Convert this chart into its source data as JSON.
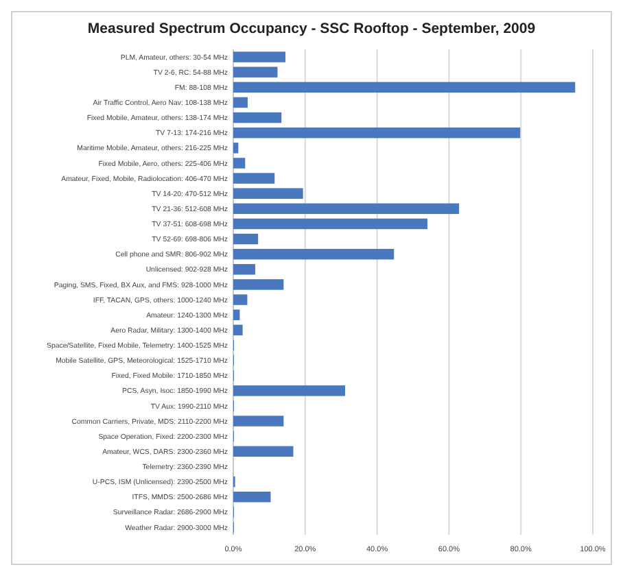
{
  "chart_data": {
    "type": "bar",
    "orientation": "horizontal",
    "title": "Measured Spectrum Occupancy - SSC Rooftop - September, 2009",
    "categories": [
      "PLM, Amateur, others: 30-54 MHz",
      "TV 2-6, RC: 54-88 MHz",
      "FM: 88-108 MHz",
      "Air Traffic Control, Aero Nav: 108-138 MHz",
      "Fixed Mobile, Amateur, others: 138-174 MHz",
      "TV 7-13: 174-216 MHz",
      "Maritime Mobile, Amateur, others: 216-225 MHz",
      "Fixed Mobile, Aero, others: 225-406 MHz",
      "Amateur, Fixed, Mobile, Radiolocation: 406-470 MHz",
      "TV 14-20: 470-512 MHz",
      "TV 21-36: 512-608 MHz",
      "TV 37-51: 608-698 MHz",
      "TV 52-69: 698-806 MHz",
      "Cell phone and SMR: 806-902 MHz",
      "Unlicensed: 902-928 MHz",
      "Paging, SMS, Fixed, BX Aux, and FMS: 928-1000 MHz",
      "IFF, TACAN, GPS, others: 1000-1240 MHz",
      "Amateur: 1240-1300 MHz",
      "Aero Radar, Military: 1300-1400 MHz",
      "Space/Satellite, Fixed Mobile, Telemetry: 1400-1525 MHz",
      "Mobile Satellite, GPS, Meteorological: 1525-1710 MHz",
      "Fixed, Fixed Mobile: 1710-1850 MHz",
      "PCS, Asyn, Isoc: 1850-1990 MHz",
      "TV Aux: 1990-2110 MHz",
      "Common Carriers, Private, MDS: 2110-2200 MHz",
      "Space Operation, Fixed: 2200-2300 MHz",
      "Amateur, WCS, DARS: 2300-2360 MHz",
      "Telemetry: 2360-2390 MHz",
      "U-PCS, ISM (Unlicensed): 2390-2500 MHz",
      "ITFS, MMDS: 2500-2686 MHz",
      "Surveillance Radar: 2686-2900 MHz",
      "Weather Radar: 2900-3000 MHz"
    ],
    "values": [
      14.5,
      12.3,
      95.1,
      4.0,
      13.4,
      79.8,
      1.4,
      3.3,
      11.5,
      19.4,
      62.8,
      54.0,
      6.9,
      44.7,
      6.1,
      14.0,
      3.9,
      1.8,
      2.6,
      0.2,
      0.2,
      0.2,
      31.1,
      0.2,
      14.0,
      0.2,
      16.7,
      0,
      0.5,
      10.4,
      0.2,
      0.2
    ],
    "color": "#4a78bf",
    "xlim": [
      0,
      100
    ],
    "xticks": [
      {
        "value": 0,
        "label": "0.0%"
      },
      {
        "value": 20,
        "label": "20.0%"
      },
      {
        "value": 40,
        "label": "40.0%"
      },
      {
        "value": 60,
        "label": "60.0%"
      },
      {
        "value": 80,
        "label": "80.0%"
      },
      {
        "value": 100,
        "label": "100.0%"
      }
    ],
    "grid": "x"
  }
}
